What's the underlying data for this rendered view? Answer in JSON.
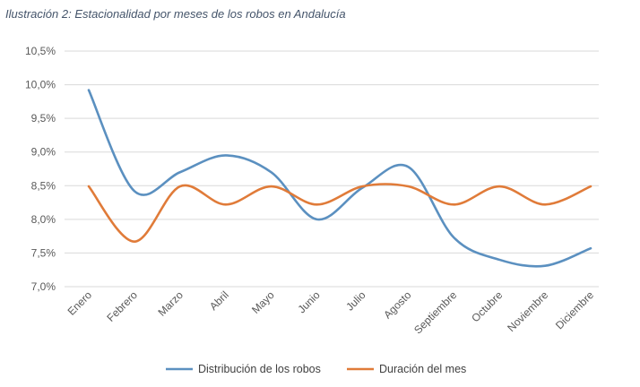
{
  "chart_data": {
    "type": "line",
    "title": "Ilustración 2: Estacionalidad por meses de los robos en Andalucía",
    "xlabel": "",
    "ylabel": "",
    "categories": [
      "Enero",
      "Febrero",
      "Marzo",
      "Abril",
      "Mayo",
      "Junio",
      "Julio",
      "Agosto",
      "Septiembre",
      "Octubre",
      "Noviembre",
      "Diciembre"
    ],
    "ylim": [
      7.0,
      10.5
    ],
    "yticks": [
      7.0,
      7.5,
      8.0,
      8.5,
      9.0,
      9.5,
      10.0,
      10.5
    ],
    "ytick_labels": [
      "7,0%",
      "7,5%",
      "8,0%",
      "8,5%",
      "9,0%",
      "9,5%",
      "10,0%",
      "10,5%"
    ],
    "grid": true,
    "smooth": true,
    "legend_position": "bottom",
    "series": [
      {
        "name": "Distribución de los robos",
        "color": "#5b90c0",
        "values": [
          9.92,
          8.42,
          8.7,
          8.95,
          8.7,
          8.0,
          8.47,
          8.78,
          7.73,
          7.4,
          7.31,
          7.57
        ]
      },
      {
        "name": "Duración del mes",
        "color": "#e07b39",
        "values": [
          8.49,
          7.67,
          8.49,
          8.22,
          8.49,
          8.22,
          8.49,
          8.49,
          8.22,
          8.49,
          8.22,
          8.49
        ]
      }
    ]
  }
}
